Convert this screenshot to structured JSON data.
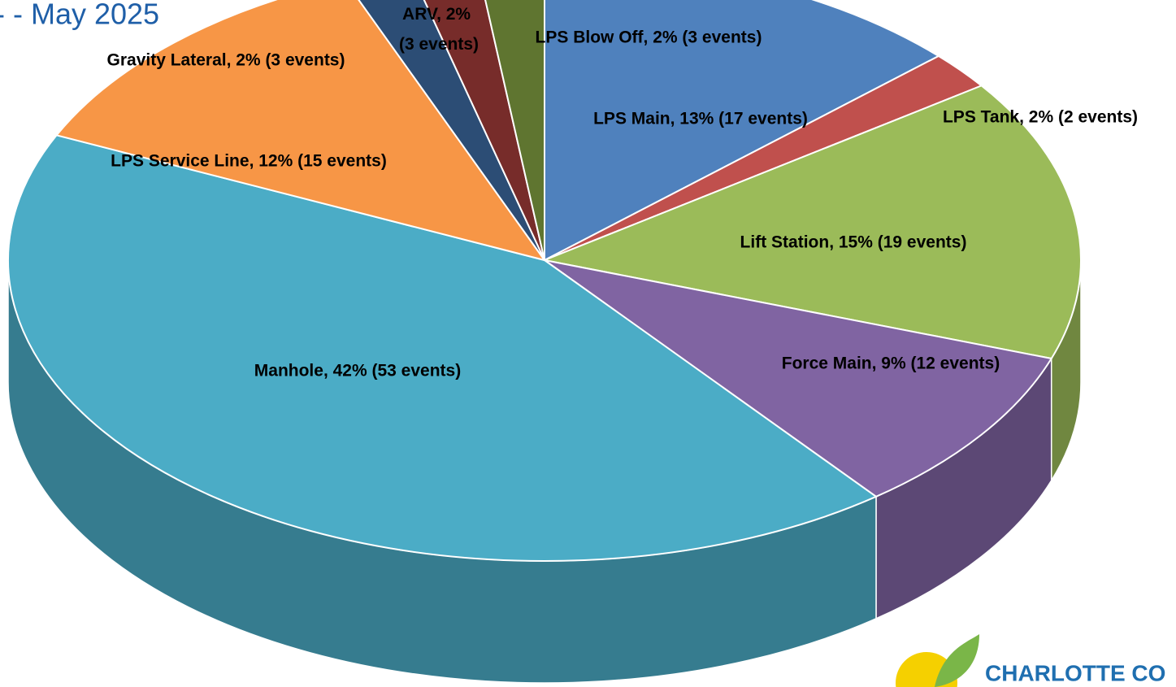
{
  "chart_data": {
    "type": "pie3d",
    "title": "- - May 2025",
    "logo_text": "CHARLOTTE CO",
    "values": [
      13,
      2,
      15,
      9,
      42,
      12,
      2,
      2,
      2
    ],
    "value_labels": [
      "LPS Main, 13% (17 events)",
      "LPS Tank, 2% (2 events)",
      "Lift Station, 15% (19 events)",
      "Force Main, 9% (12 events)",
      "Manhole, 42% (53 events)",
      "LPS Service Line, 12% (15 events)",
      "Gravity Lateral, 2% (3 events)",
      "ARV, 2% (3 events)",
      "LPS Blow Off, 2% (3 events)"
    ],
    "colors": [
      "#4f81bd",
      "#c0504d",
      "#9bbb59",
      "#8064a2",
      "#4bacc6",
      "#f79646",
      "#2c4d75",
      "#772c2a",
      "#5f7530"
    ]
  }
}
